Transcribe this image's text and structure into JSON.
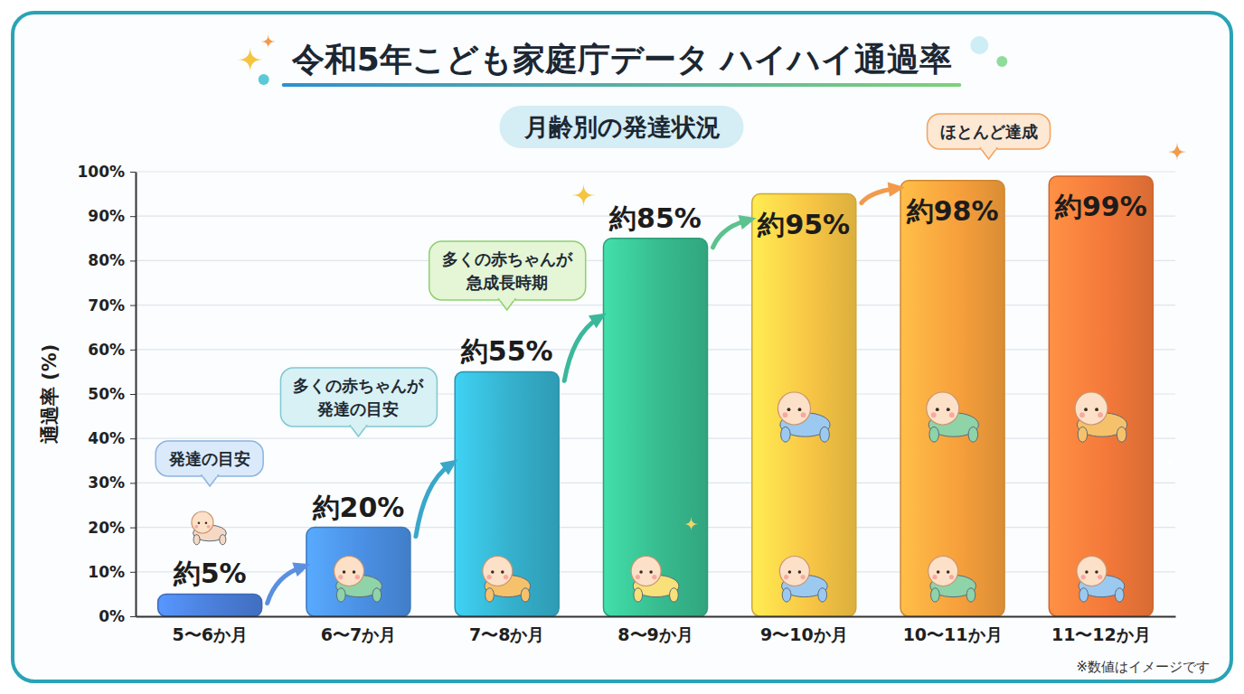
{
  "chart_data": {
    "type": "bar",
    "title": "令和5年こども家庭庁データ ハイハイ通過率",
    "subtitle": "月齢別の発達状況",
    "y_label": "通過率 (%)",
    "categories": [
      "5〜6か月",
      "6〜7か月",
      "7〜8か月",
      "8〜9か月",
      "9〜10か月",
      "10〜11か月",
      "11〜12か月"
    ],
    "values": [
      5,
      20,
      55,
      85,
      95,
      98,
      99
    ],
    "value_labels": [
      "約5%",
      "約20%",
      "約55%",
      "約85%",
      "約95%",
      "約98%",
      "約99%"
    ],
    "data_labels": true,
    "colors": [
      "#4a7ed9",
      "#4a8fe3",
      "#35b0cc",
      "#37bb8f",
      "#f8c645",
      "#f7a03c",
      "#f4793a"
    ],
    "ylim": [
      0,
      100
    ],
    "yticks": [
      {
        "value": 0,
        "label": "0%"
      },
      {
        "value": 10,
        "label": "10%"
      },
      {
        "value": 20,
        "label": "20%"
      },
      {
        "value": 30,
        "label": "30%"
      },
      {
        "value": 40,
        "label": "40%"
      },
      {
        "value": 50,
        "label": "50%"
      },
      {
        "value": 60,
        "label": "60%"
      },
      {
        "value": 70,
        "label": "70%"
      },
      {
        "value": 80,
        "label": "80%"
      },
      {
        "value": 90,
        "label": "90%"
      },
      {
        "value": 100,
        "label": "100%"
      }
    ],
    "grid": true,
    "annotations": [
      [
        "発達の目安"
      ],
      [
        "多くの赤ちゃんが",
        "発達の目安"
      ],
      [
        "多くの赤ちゃんが",
        "急成長時期"
      ],
      [
        "ほとんど達成"
      ]
    ],
    "note": "※数値はイメージです"
  }
}
